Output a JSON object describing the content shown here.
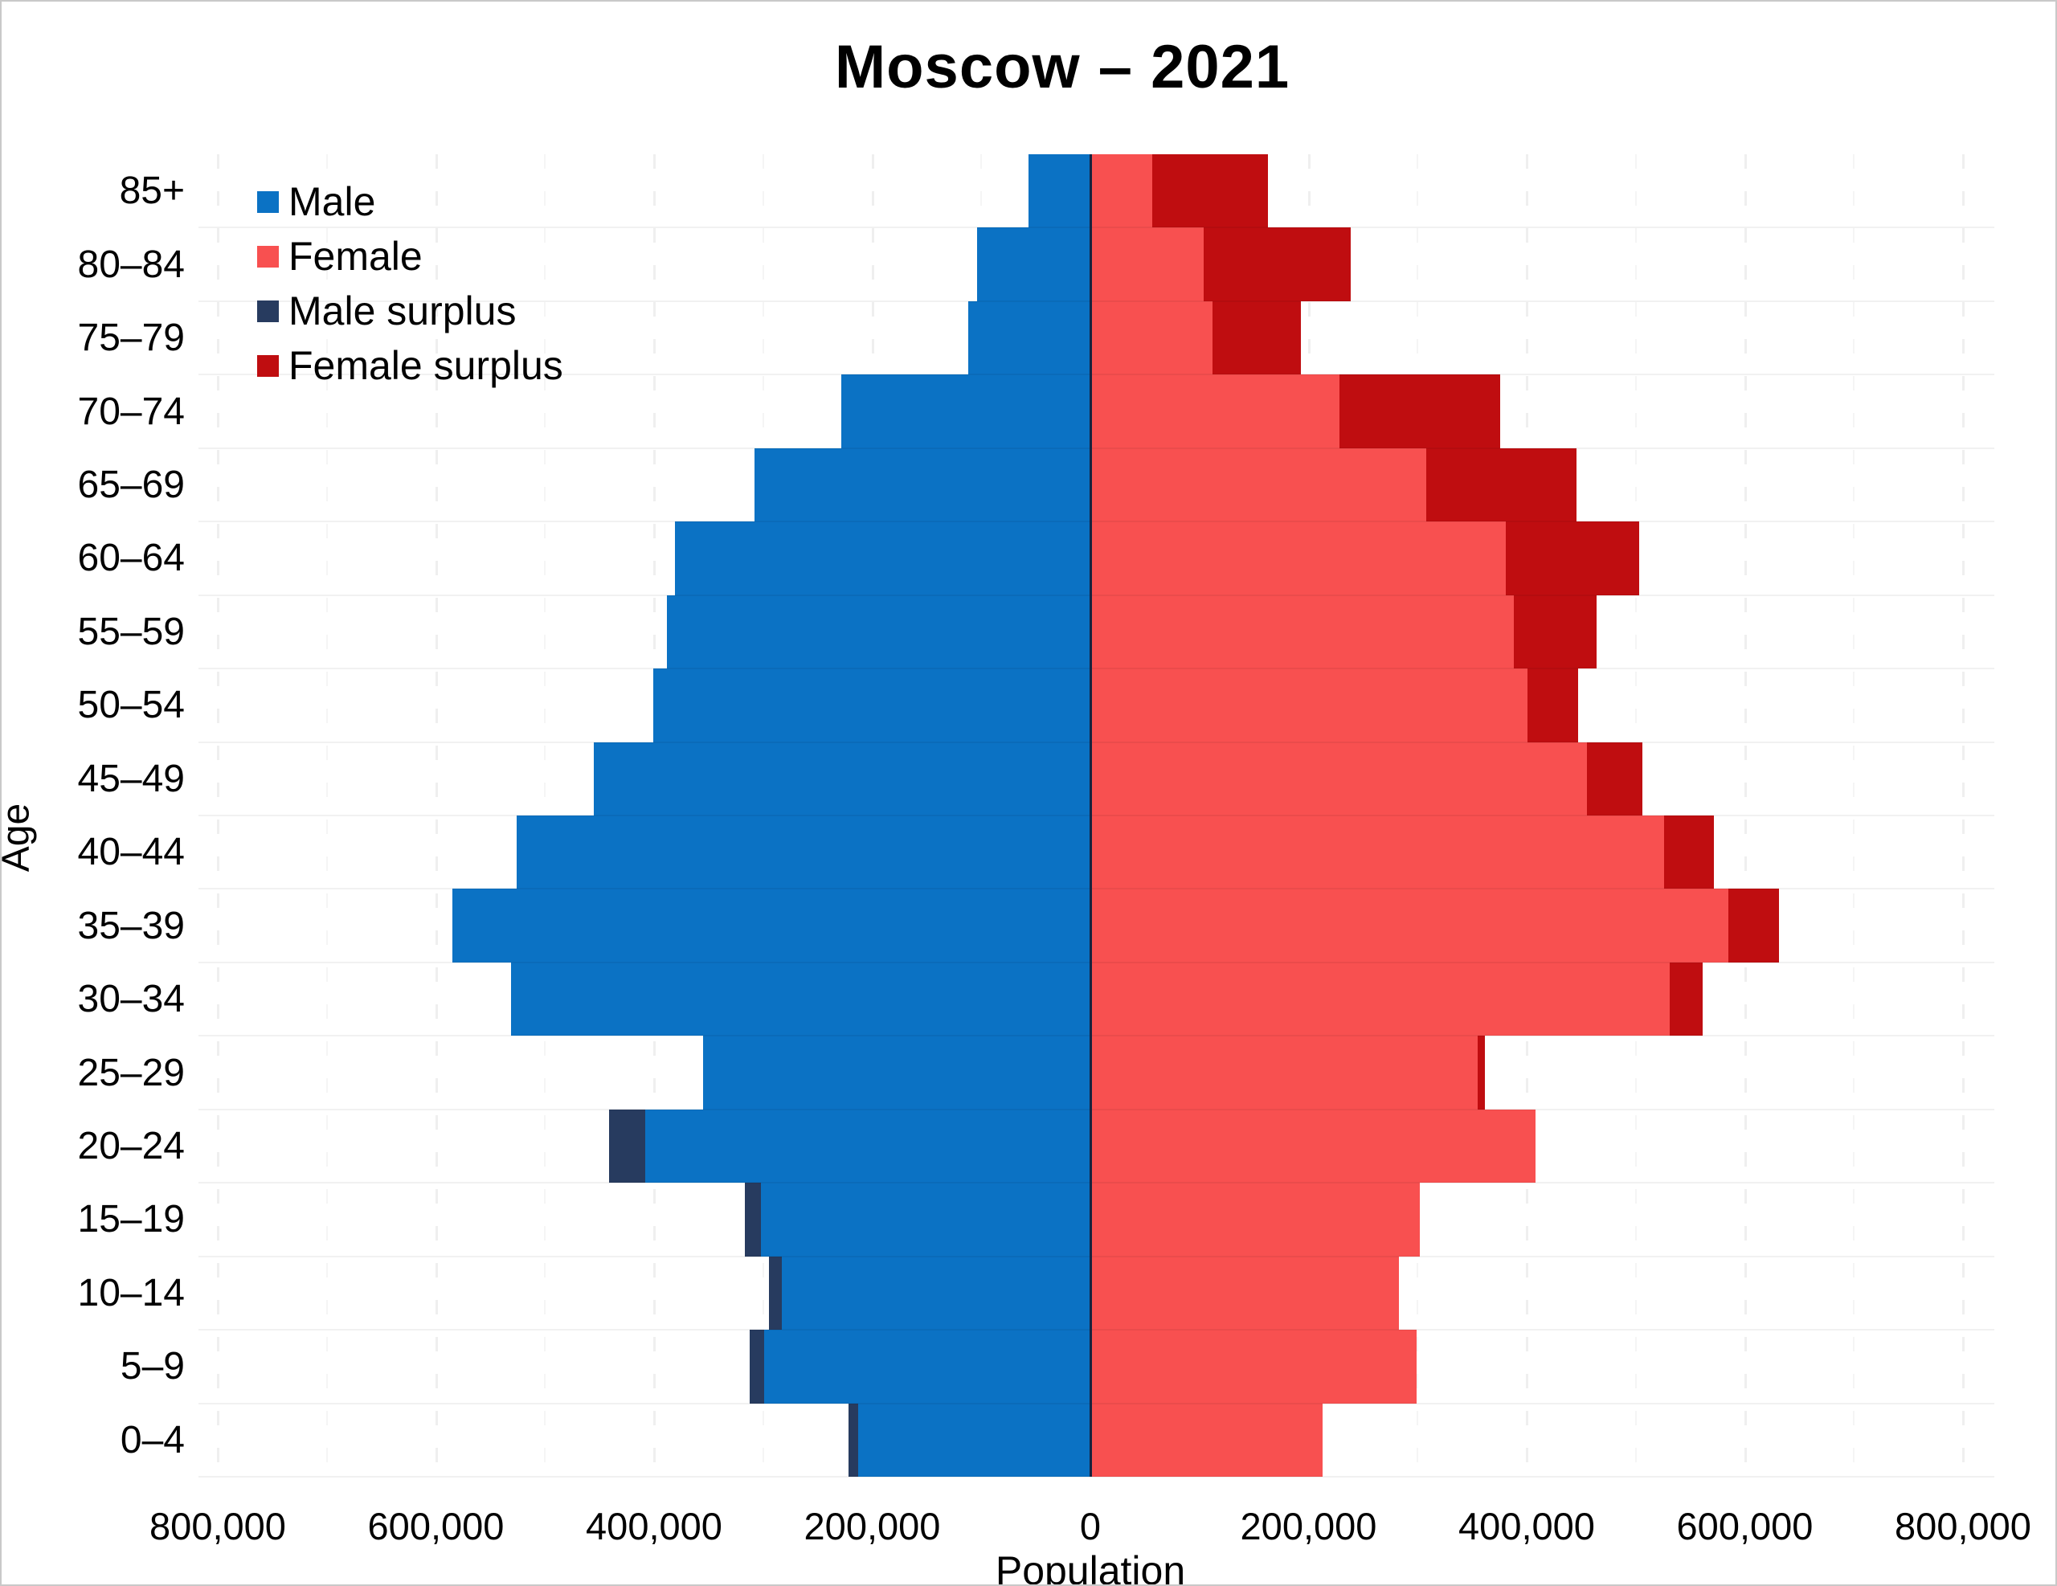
{
  "page": {
    "title": "Moscow – 2021"
  },
  "legend": {
    "items": [
      {
        "label": "Male",
        "color": "#0b72c4"
      },
      {
        "label": "Female",
        "color": "#f85050"
      },
      {
        "label": "Male surplus",
        "color": "#273b5f"
      },
      {
        "label": "Female surplus",
        "color": "#bf0d10"
      }
    ]
  },
  "chart_data": {
    "type": "bar",
    "variant": "population_pyramid",
    "title": "Moscow – 2021",
    "xlabel": "Population",
    "ylabel": "Age",
    "x_axis": {
      "min": -800000,
      "max": 800000,
      "tick_interval": 200000,
      "tick_labels": [
        "800,000",
        "600,000",
        "400,000",
        "200,000",
        "0",
        "200,000",
        "400,000",
        "600,000",
        "800,000"
      ]
    },
    "grid": true,
    "legend_position": "top-left",
    "categories_top_to_bottom": [
      "85+",
      "80–84",
      "75–79",
      "70–74",
      "65–69",
      "60–64",
      "55–59",
      "50–54",
      "45–49",
      "40–44",
      "35–39",
      "30–34",
      "25–29",
      "20–24",
      "15–19",
      "10–14",
      "5–9",
      "0–4"
    ],
    "series": [
      {
        "name": "Male",
        "side": "left",
        "color": "#0b72c4",
        "values": [
          57000,
          104000,
          112000,
          228000,
          308000,
          381000,
          388000,
          401000,
          455000,
          526000,
          585000,
          531000,
          355000,
          441000,
          317000,
          295000,
          312000,
          222000
        ]
      },
      {
        "name": "Female",
        "side": "right",
        "color": "#f85050",
        "values": [
          163000,
          239000,
          193000,
          376000,
          446000,
          503000,
          464000,
          447000,
          506000,
          572000,
          631000,
          561000,
          362000,
          408000,
          302000,
          283000,
          299000,
          213000
        ]
      },
      {
        "name": "Male surplus",
        "color": "#273b5f",
        "derived": "max(male - female, 0) drawn at tip of male bar"
      },
      {
        "name": "Female surplus",
        "color": "#bf0d10",
        "derived": "max(female - male, 0) drawn at tip of female bar"
      }
    ]
  }
}
